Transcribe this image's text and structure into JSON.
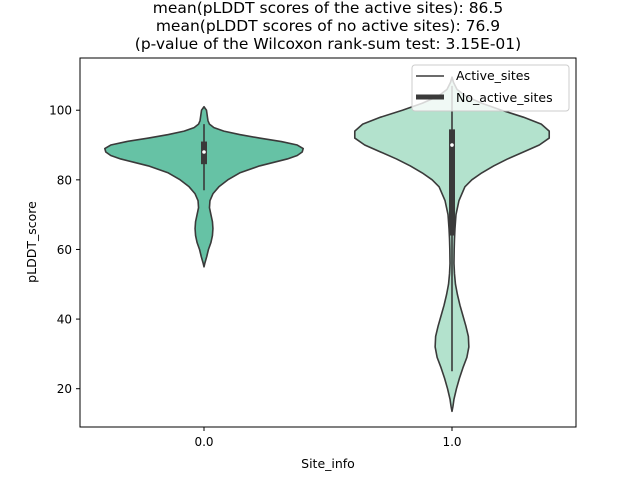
{
  "chart_data": {
    "type": "violin",
    "title_lines": [
      "mean(pLDDT scores of the active sites): 86.5",
      "mean(pLDDT scores of no active sites): 76.9",
      "(p-value of the Wilcoxon rank-sum test: 3.15E-01)"
    ],
    "xlabel": "Site_info",
    "ylabel": "pLDDT_score",
    "categories": [
      "0.0",
      "1.0"
    ],
    "ylim": [
      9,
      115
    ],
    "yticks": [
      20,
      40,
      60,
      80,
      100
    ],
    "colors": [
      "#66c2a5",
      "#b3e2cd"
    ],
    "edge_color": "#3a3a3a",
    "legend": {
      "location": "top-right",
      "entries": [
        "Active_sites",
        "No_active_sites"
      ]
    },
    "violins": [
      {
        "category": "0.0",
        "median": 88,
        "q1": 84.5,
        "q3": 91,
        "whisker_low": 77,
        "whisker_high": 96,
        "density": [
          [
            55,
            0.0
          ],
          [
            56,
            0.008
          ],
          [
            57,
            0.018
          ],
          [
            58,
            0.028
          ],
          [
            60,
            0.045
          ],
          [
            62,
            0.07
          ],
          [
            64,
            0.085
          ],
          [
            66,
            0.09
          ],
          [
            68,
            0.085
          ],
          [
            70,
            0.07
          ],
          [
            72,
            0.055
          ],
          [
            74,
            0.06
          ],
          [
            76,
            0.09
          ],
          [
            78,
            0.15
          ],
          [
            80,
            0.24
          ],
          [
            82,
            0.36
          ],
          [
            84,
            0.56
          ],
          [
            85,
            0.7
          ],
          [
            86,
            0.84
          ],
          [
            87,
            0.94
          ],
          [
            88,
            0.99
          ],
          [
            89,
            1.0
          ],
          [
            90,
            0.94
          ],
          [
            91,
            0.78
          ],
          [
            92,
            0.56
          ],
          [
            93,
            0.36
          ],
          [
            94,
            0.2
          ],
          [
            95,
            0.1
          ],
          [
            96,
            0.055
          ],
          [
            97,
            0.04
          ],
          [
            98,
            0.035
          ],
          [
            99,
            0.03
          ],
          [
            100,
            0.025
          ],
          [
            101,
            0.0
          ]
        ]
      },
      {
        "category": "1.0",
        "median": 90,
        "q1": 64,
        "q3": 94.5,
        "whisker_low": 25,
        "whisker_high": 107,
        "density": [
          [
            13.5,
            0.0
          ],
          [
            15,
            0.01
          ],
          [
            17,
            0.02
          ],
          [
            20,
            0.045
          ],
          [
            23,
            0.075
          ],
          [
            26,
            0.11
          ],
          [
            29,
            0.15
          ],
          [
            32,
            0.17
          ],
          [
            35,
            0.165
          ],
          [
            38,
            0.14
          ],
          [
            41,
            0.11
          ],
          [
            44,
            0.08
          ],
          [
            47,
            0.055
          ],
          [
            50,
            0.035
          ],
          [
            53,
            0.025
          ],
          [
            56,
            0.02
          ],
          [
            60,
            0.022
          ],
          [
            63,
            0.025
          ],
          [
            66,
            0.03
          ],
          [
            70,
            0.04
          ],
          [
            74,
            0.07
          ],
          [
            78,
            0.13
          ],
          [
            80,
            0.2
          ],
          [
            82,
            0.3
          ],
          [
            84,
            0.42
          ],
          [
            86,
            0.56
          ],
          [
            88,
            0.72
          ],
          [
            90,
            0.88
          ],
          [
            92,
            0.98
          ],
          [
            94,
            0.98
          ],
          [
            96,
            0.9
          ],
          [
            98,
            0.72
          ],
          [
            100,
            0.5
          ],
          [
            102,
            0.3
          ],
          [
            104,
            0.14
          ],
          [
            106,
            0.05
          ],
          [
            108,
            0.015
          ],
          [
            109.5,
            0.0
          ]
        ]
      }
    ]
  }
}
